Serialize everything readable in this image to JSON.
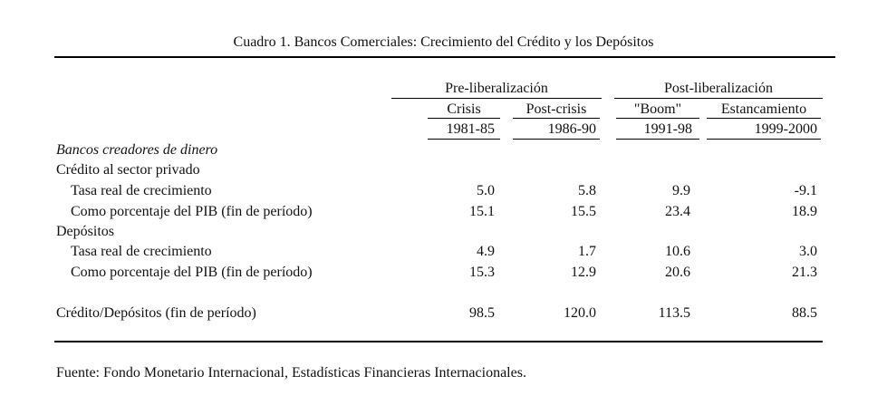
{
  "title": "Cuadro 1. Bancos Comerciales: Crecimiento del Crédito y los Depósitos",
  "groups": {
    "pre": "Pre-liberalización",
    "post": "Post-liberalización"
  },
  "columns": [
    {
      "label": "Crisis",
      "period": "1981-85"
    },
    {
      "label": "Post-crisis",
      "period": "1986-90"
    },
    {
      "label": "\"Boom\"",
      "period": "1991-98"
    },
    {
      "label": "Estancamiento",
      "period": "1999-2000"
    }
  ],
  "section_title": "Bancos creadores de dinero",
  "credit": {
    "heading": "Crédito al sector privado",
    "rows": [
      {
        "label": "Tasa real de crecimiento",
        "values": [
          "5.0",
          "5.8",
          "9.9",
          "-9.1"
        ]
      },
      {
        "label": "Como porcentaje del PIB (fin de período)",
        "values": [
          "15.1",
          "15.5",
          "23.4",
          "18.9"
        ]
      }
    ]
  },
  "deposits": {
    "heading": "Depósitos",
    "rows": [
      {
        "label": "Tasa real de crecimiento",
        "values": [
          "4.9",
          "1.7",
          "10.6",
          "3.0"
        ]
      },
      {
        "label": "Como porcentaje del PIB (fin de período)",
        "values": [
          "15.3",
          "12.9",
          "20.6",
          "21.3"
        ]
      }
    ]
  },
  "ratio": {
    "label": "Crédito/Depósitos (fin de período)",
    "values": [
      "98.5",
      "120.0",
      "113.5",
      "88.5"
    ]
  },
  "source": "Fuente: Fondo Monetario Internacional, Estadísticas Financieras Internacionales."
}
